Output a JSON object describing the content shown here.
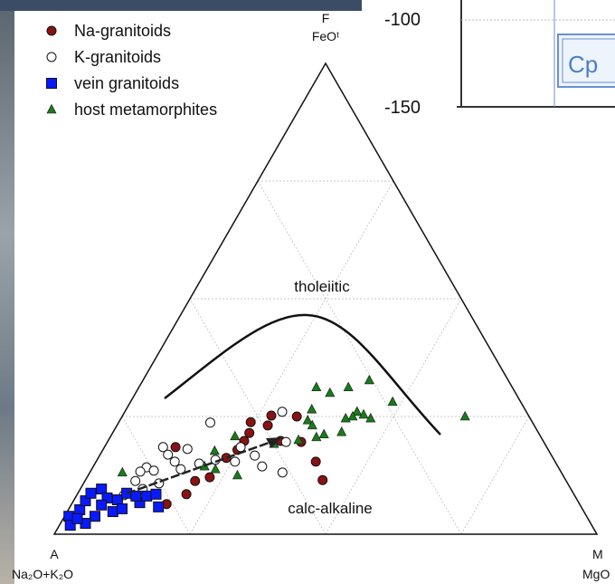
{
  "chart_data": {
    "type": "ternary",
    "vertex_labels": {
      "top": "F",
      "top_sub": "FeOᵗ",
      "left": "A",
      "left_sub": "Na₂O+K₂O",
      "right": "M",
      "right_sub": "MgO"
    },
    "annotations": [
      "tholeiitic",
      "calc-alkaline"
    ],
    "ticks": [
      25,
      50,
      75
    ],
    "grid": true,
    "legend": "upper left",
    "series": [
      {
        "name": "Na-granitoids",
        "color": "#8b1212",
        "marker": "circle",
        "f": [
          18.5,
          23.8,
          25.2,
          25,
          21.5,
          17.9,
          16.2,
          11.3,
          12.1,
          8.5,
          6.4,
          11.5,
          15.4,
          19.6,
          19.8,
          19.8,
          23.1
        ],
        "m": [
          13.1,
          24.3,
          27.4,
          32.2,
          25.2,
          24.8,
          23.6,
          20.3,
          22.6,
          20.1,
          17.5,
          43.7,
          40.5,
          35.7,
          31.8,
          25.1,
          27.8
        ]
      },
      {
        "name": "K-granitoids",
        "color": "#ffffff",
        "marker": "circle",
        "f": [
          23.7,
          18.5,
          16.9,
          18.1,
          14.2,
          13.3,
          11.3,
          8.3,
          13.5,
          13.8,
          15,
          15.8,
          18.5,
          16.7,
          26,
          19.6,
          13.1,
          14.4,
          15.4,
          15.4,
          10.8,
          9.6
        ],
        "m": [
          16.9,
          10.8,
          12.5,
          15.5,
          9.9,
          9.2,
          9.3,
          8.7,
          11.6,
          16.4,
          19.2,
          21.8,
          25.1,
          28.6,
          29,
          32.9,
          35.5,
          31.1,
          25.6,
          14.5,
          13.9,
          11.5
        ]
      },
      {
        "name": "vein granitoids",
        "color": "#0a1aff",
        "marker": "square",
        "f": [
          3.8,
          1.9,
          5.2,
          7.1,
          8.7,
          9.6,
          7.7,
          3.8,
          2.3,
          7.3,
          8.7,
          6.7,
          8.1,
          8.5,
          5.8,
          4.8,
          6.2,
          3.3,
          8.1,
          5.4
        ],
        "m": [
          0.8,
          2,
          2.1,
          2.2,
          2.4,
          3.9,
          5.9,
          5.6,
          4.6,
          8,
          9,
          12.4,
          13,
          14.5,
          16.3,
          8.4,
          5.6,
          2.6,
          11,
          9.8
        ]
      },
      {
        "name": "host metamorphites",
        "color": "#1a7a1a",
        "marker": "triangle",
        "f": [
          31.2,
          30,
          31.2,
          32.7,
          28.1,
          26,
          25.4,
          25,
          24.6,
          24.6,
          26.5,
          24.2,
          21.2,
          20.6,
          20,
          19.2,
          20.8,
          17.7,
          13.8,
          12.5,
          14.4,
          13.1,
          25,
          21.7,
          23.1
        ],
        "m": [
          32.7,
          35.8,
          38.6,
          41.7,
          48.3,
          42.8,
          44.3,
          42.5,
          41.4,
          46,
          34.2,
          34.6,
          39.1,
          38,
          35,
          30.9,
          22.9,
          20.7,
          22.8,
          27.5,
          20.5,
          6,
          63.2,
          42.1,
          36
        ]
      }
    ]
  },
  "overlay": {
    "axis_labels": [
      "-100",
      "-150"
    ],
    "button": "Cp"
  }
}
